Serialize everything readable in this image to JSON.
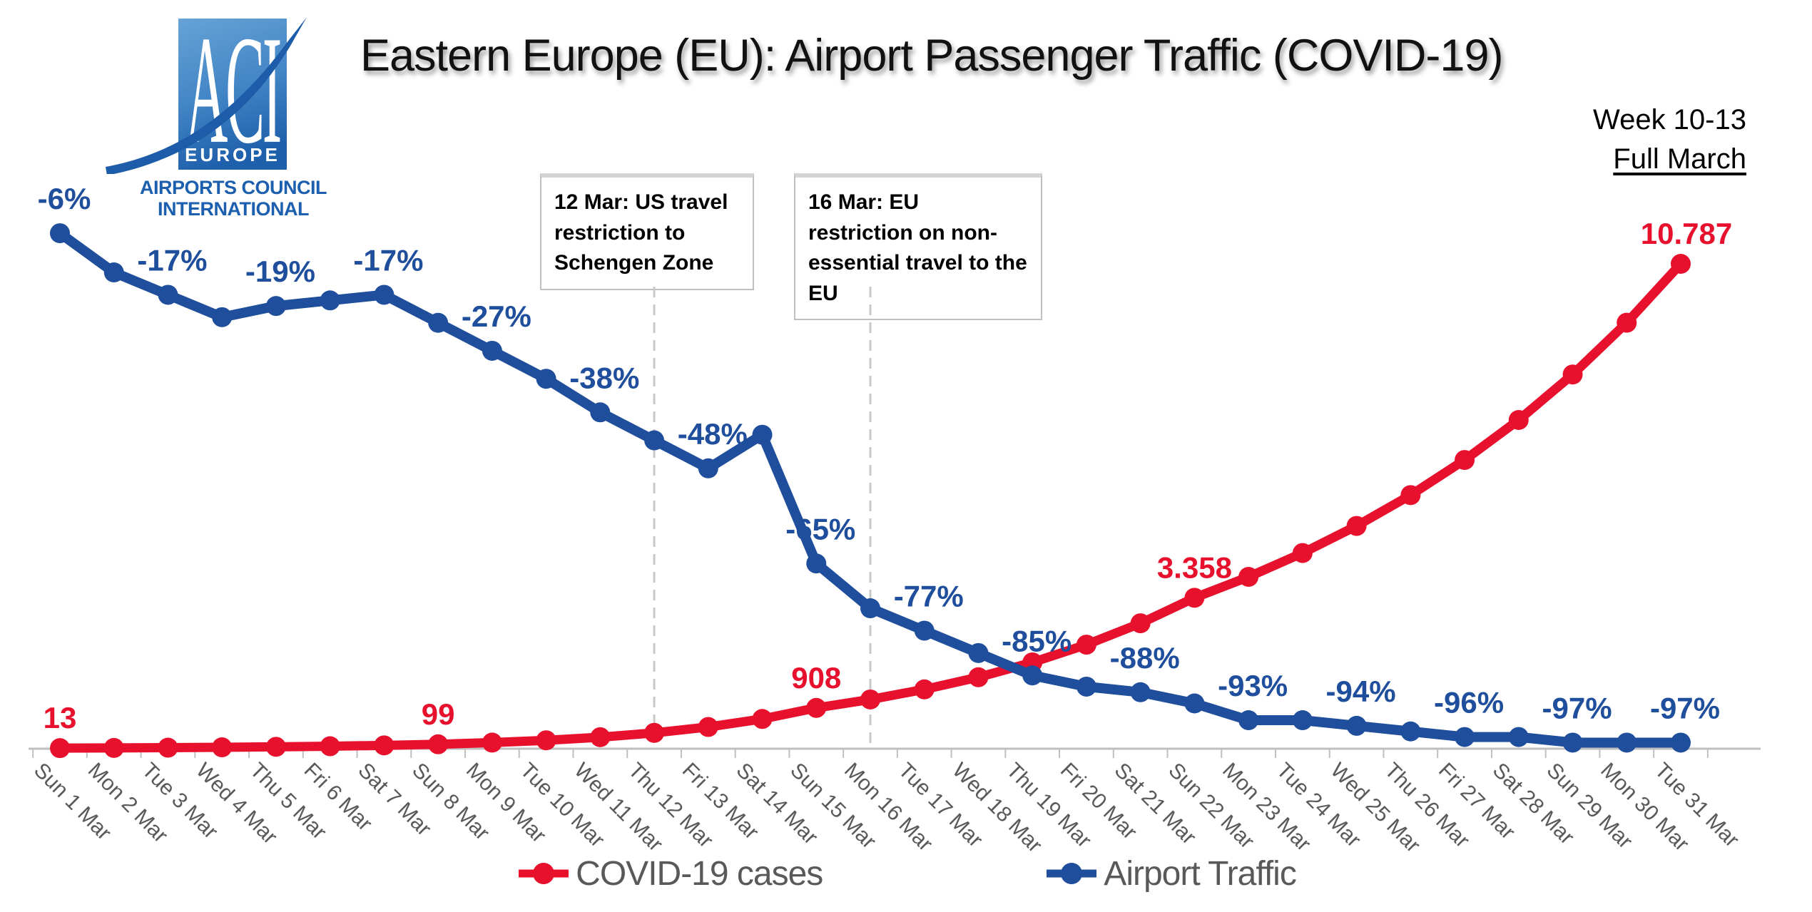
{
  "logo": {
    "acronym": "ACI",
    "region": "EUROPE",
    "caption_line1": "AIRPORTS COUNCIL",
    "caption_line2": "INTERNATIONAL",
    "field_color_top": "#5e9ad2",
    "field_color_bottom": "#1f60ab",
    "swoosh_color": "#1c5ca8",
    "caption_color": "#1c5fae"
  },
  "header": {
    "title": "Eastern Europe (EU): Airport Passenger Traffic (COVID-19)",
    "week_label": "Week 10-13",
    "period_label": "Full March"
  },
  "annotations": [
    {
      "day": 12,
      "text": "12 Mar: US travel restriction to Schengen Zone"
    },
    {
      "day": 16,
      "text": "16 Mar: EU restriction on non-essential travel to the EU"
    }
  ],
  "legend": [
    {
      "label": "COVID-19 cases",
      "color": "#e8112d"
    },
    {
      "label": "Airport Traffic",
      "color": "#1f4e9c"
    }
  ],
  "chart_data": {
    "type": "line",
    "title": "Eastern Europe (EU): Airport Passenger Traffic (COVID-19)",
    "xlabel": "",
    "ylabel": "",
    "grid": false,
    "legend_position": "bottom",
    "categories": [
      "Sun 1 Mar",
      "Mon 2 Mar",
      "Tue 3 Mar",
      "Wed 4 Mar",
      "Thu 5 Mar",
      "Fri 6 Mar",
      "Sat 7 Mar",
      "Sun 8 Mar",
      "Mon 9 Mar",
      "Tue 10 Mar",
      "Wed 11 Mar",
      "Thu 12 Mar",
      "Fri 13 Mar",
      "Sat 14 Mar",
      "Sun 15 Mar",
      "Mon 16 Mar",
      "Tue 17 Mar",
      "Wed 18 Mar",
      "Thu 19 Mar",
      "Fri 20 Mar",
      "Sat 21 Mar",
      "Sun 22 Mar",
      "Mon 23 Mar",
      "Tue 24 Mar",
      "Wed 25 Mar",
      "Thu 26 Mar",
      "Fri 27 Mar",
      "Sat 28 Mar",
      "Sun 29 Mar",
      "Mon 30 Mar",
      "Tue 31 Mar"
    ],
    "series": [
      {
        "name": "COVID-19 cases",
        "color": "#e8112d",
        "axis": {
          "side": "left",
          "min": 0,
          "max": 10787
        },
        "values": [
          13,
          17,
          23,
          31,
          42,
          55,
          74,
          99,
          136,
          187,
          256,
          352,
          483,
          662,
          908,
          1095,
          1320,
          1590,
          1920,
          2315,
          2790,
          3358,
          3823,
          4353,
          4956,
          5642,
          6423,
          7313,
          8325,
          9477,
          10787
        ],
        "data_labels": [
          {
            "day": 1,
            "text": "13"
          },
          {
            "day": 8,
            "text": "99"
          },
          {
            "day": 15,
            "text": "908"
          },
          {
            "day": 22,
            "text": "3.358"
          },
          {
            "day": 31,
            "text": "10.787"
          }
        ]
      },
      {
        "name": "Airport Traffic",
        "color": "#1f4e9c",
        "axis": {
          "side": "right",
          "min": -100,
          "max": 0,
          "unit": "%"
        },
        "values": [
          -6,
          -13,
          -17,
          -21,
          -19,
          -18,
          -17,
          -22,
          -27,
          -32,
          -38,
          -43,
          -48,
          -42,
          -65,
          -73,
          -77,
          -81,
          -85,
          -87,
          -88,
          -90,
          -93,
          -93,
          -94,
          -95,
          -96,
          -96,
          -97,
          -97,
          -97
        ],
        "labeled_days": [
          1,
          3,
          5,
          7,
          9,
          11,
          13,
          15,
          17,
          19,
          21,
          23,
          25,
          27,
          29,
          31
        ],
        "label_format": "{v}%"
      }
    ],
    "event_lines": [
      {
        "day": 12,
        "label": "12 Mar: US travel restriction to Schengen Zone"
      },
      {
        "day": 16,
        "label": "16 Mar: EU restriction on non-essential travel to the EU"
      }
    ]
  }
}
